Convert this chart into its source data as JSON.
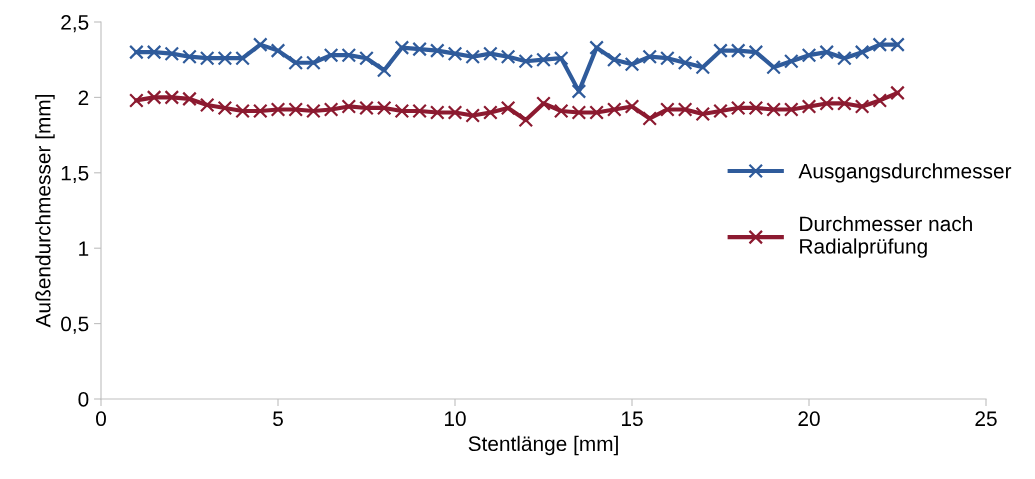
{
  "chart_data": {
    "type": "line",
    "xlabel": "Stentlänge [mm]",
    "ylabel": "Außendurchmesser [mm]",
    "x": [
      1,
      1.5,
      2,
      2.5,
      3,
      3.5,
      4,
      4.5,
      5,
      5.5,
      6,
      6.5,
      7,
      7.5,
      8,
      8.5,
      9,
      9.5,
      10,
      10.5,
      11,
      11.5,
      12,
      12.5,
      13,
      13.5,
      14,
      14.5,
      15,
      15.5,
      16,
      16.5,
      17,
      17.5,
      18,
      18.5,
      19,
      19.5,
      20,
      20.5,
      21,
      21.5,
      22,
      22.5
    ],
    "series": [
      {
        "name": "Ausgangsdurchmesser",
        "color": "#2f5b9b",
        "values": [
          2.3,
          2.3,
          2.29,
          2.27,
          2.26,
          2.26,
          2.26,
          2.35,
          2.31,
          2.23,
          2.23,
          2.28,
          2.28,
          2.26,
          2.18,
          2.33,
          2.32,
          2.31,
          2.29,
          2.27,
          2.29,
          2.27,
          2.24,
          2.25,
          2.26,
          2.04,
          2.33,
          2.25,
          2.22,
          2.27,
          2.26,
          2.23,
          2.2,
          2.31,
          2.31,
          2.3,
          2.2,
          2.24,
          2.28,
          2.3,
          2.26,
          2.3,
          2.35,
          2.35
        ]
      },
      {
        "name": "Durchmesser nach\nRadialprüfung",
        "color": "#8c1a30",
        "values": [
          1.98,
          2.0,
          2.0,
          1.99,
          1.95,
          1.93,
          1.91,
          1.91,
          1.92,
          1.92,
          1.91,
          1.92,
          1.94,
          1.93,
          1.93,
          1.91,
          1.91,
          1.9,
          1.9,
          1.88,
          1.9,
          1.93,
          1.85,
          1.96,
          1.91,
          1.9,
          1.9,
          1.92,
          1.94,
          1.86,
          1.92,
          1.92,
          1.89,
          1.91,
          1.93,
          1.93,
          1.92,
          1.92,
          1.94,
          1.96,
          1.96,
          1.94,
          1.98,
          2.03
        ]
      }
    ],
    "xlim": [
      0,
      25
    ],
    "xticks": [
      0,
      5,
      10,
      15,
      20,
      25
    ],
    "ylim": [
      0,
      2.5
    ],
    "yticks": [
      0,
      {
        "value": 0.5,
        "label": "0,5"
      },
      1,
      {
        "value": 1.5,
        "label": "1,5"
      },
      2,
      {
        "value": 2.5,
        "label": "2,5"
      }
    ],
    "marker": "cross",
    "line_style": "solid",
    "grid": false,
    "legend": "center right"
  }
}
